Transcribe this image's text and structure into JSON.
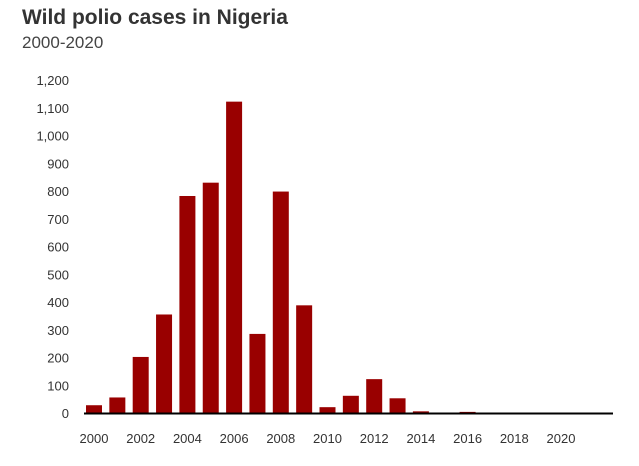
{
  "chart_data": {
    "type": "bar",
    "title": "Wild polio cases in Nigeria",
    "subtitle": "2000-2020",
    "xlabel": "",
    "ylabel": "",
    "ylim": [
      0,
      1200
    ],
    "yticks": [
      "0",
      "100",
      "200",
      "300",
      "400",
      "500",
      "600",
      "700",
      "800",
      "900",
      "1,000",
      "1,100",
      "1,200"
    ],
    "xticks": [
      "2000",
      "2002",
      "2004",
      "2006",
      "2008",
      "2010",
      "2012",
      "2014",
      "2016",
      "2018",
      "2020"
    ],
    "categories": [
      2000,
      2001,
      2002,
      2003,
      2004,
      2005,
      2006,
      2007,
      2008,
      2009,
      2010,
      2011,
      2012,
      2013,
      2014,
      2015,
      2016,
      2017,
      2018,
      2019,
      2020
    ],
    "values": [
      28,
      56,
      202,
      355,
      782,
      830,
      1122,
      285,
      798,
      388,
      21,
      62,
      122,
      53,
      6,
      0,
      4,
      0,
      0,
      0,
      0
    ],
    "color": "#990000",
    "grid": false
  }
}
